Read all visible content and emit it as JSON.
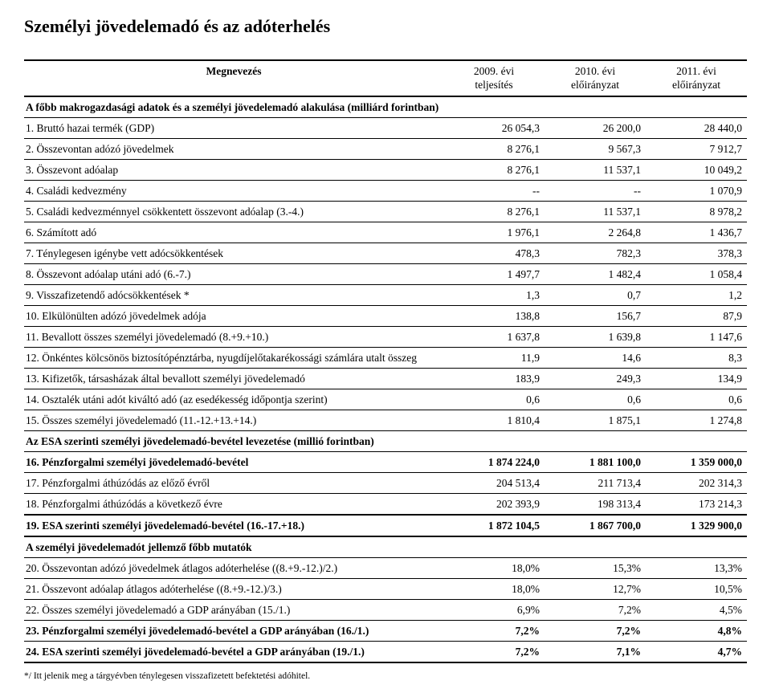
{
  "title": "Személyi jövedelemadó és az adóterhelés",
  "header": {
    "label": "Megnevezés",
    "col1a": "2009. évi",
    "col1b": "teljesítés",
    "col2a": "2010. évi",
    "col2b": "előirányzat",
    "col3a": "2011. évi",
    "col3b": "előirányzat"
  },
  "rows": [
    {
      "cls": "section",
      "label": "A főbb makrogazdasági adatok és a személyi jövedelemadó alakulása (milliárd forintban)",
      "v1": "",
      "v2": "",
      "v3": ""
    },
    {
      "cls": "",
      "label": "1.  Bruttó hazai termék (GDP)",
      "v1": "26 054,3",
      "v2": "26 200,0",
      "v3": "28 440,0"
    },
    {
      "cls": "",
      "label": "2.  Összevontan adózó jövedelmek",
      "v1": "8 276,1",
      "v2": "9 567,3",
      "v3": "7 912,7"
    },
    {
      "cls": "",
      "label": "3.  Összevont adóalap",
      "v1": "8 276,1",
      "v2": "11 537,1",
      "v3": "10 049,2"
    },
    {
      "cls": "",
      "label": "4.  Családi kedvezmény",
      "v1": "--",
      "v2": "--",
      "v3": "1 070,9"
    },
    {
      "cls": "",
      "label": "5.  Családi kedvezménnyel csökkentett összevont adóalap (3.-4.)",
      "v1": "8 276,1",
      "v2": "11 537,1",
      "v3": "8 978,2"
    },
    {
      "cls": "",
      "label": "6.  Számított adó",
      "v1": "1 976,1",
      "v2": "2 264,8",
      "v3": "1 436,7"
    },
    {
      "cls": "",
      "label": "7.  Ténylegesen igénybe vett adócsökkentések",
      "v1": "478,3",
      "v2": "782,3",
      "v3": "378,3"
    },
    {
      "cls": "",
      "label": "8.  Összevont adóalap utáni adó (6.-7.)",
      "v1": "1 497,7",
      "v2": "1 482,4",
      "v3": "1 058,4"
    },
    {
      "cls": "",
      "label": "9.  Visszafizetendő adócsökkentések *",
      "v1": "1,3",
      "v2": "0,7",
      "v3": "1,2"
    },
    {
      "cls": "",
      "label": "10. Elkülönülten adózó jövedelmek adója",
      "v1": "138,8",
      "v2": "156,7",
      "v3": "87,9"
    },
    {
      "cls": "",
      "label": "11. Bevallott összes személyi jövedelemadó (8.+9.+10.)",
      "v1": "1 637,8",
      "v2": "1 639,8",
      "v3": "1 147,6"
    },
    {
      "cls": "",
      "label": "12. Önkéntes kölcsönös biztosítópénztárba, nyugdíjelőtakarékossági számlára utalt összeg",
      "v1": "11,9",
      "v2": "14,6",
      "v3": "8,3"
    },
    {
      "cls": "",
      "label": "13. Kifizetők, társasházak által bevallott személyi jövedelemadó",
      "v1": "183,9",
      "v2": "249,3",
      "v3": "134,9"
    },
    {
      "cls": "",
      "label": "14. Osztalék utáni adót kiváltó adó (az esedékesség időpontja szerint)",
      "v1": "0,6",
      "v2": "0,6",
      "v3": "0,6"
    },
    {
      "cls": "",
      "label": "15. Összes személyi jövedelemadó (11.-12.+13.+14.)",
      "v1": "1 810,4",
      "v2": "1 875,1",
      "v3": "1 274,8"
    },
    {
      "cls": "section",
      "label": "Az ESA szerinti személyi jövedelemadó-bevétel levezetése (millió forintban)",
      "v1": "",
      "v2": "",
      "v3": ""
    },
    {
      "cls": "bold",
      "label": "16. Pénzforgalmi személyi jövedelemadó-bevétel",
      "v1": "1 874 224,0",
      "v2": "1 881 100,0",
      "v3": "1 359 000,0"
    },
    {
      "cls": "",
      "label": "17. Pénzforgalmi áthúzódás az előző évről",
      "v1": "204 513,4",
      "v2": "211 713,4",
      "v3": "202 314,3"
    },
    {
      "cls": "",
      "label": "18. Pénzforgalmi áthúzódás a következő évre",
      "v1": "202 393,9",
      "v2": "198 313,4",
      "v3": "173 214,3"
    },
    {
      "cls": "bold thick-top thick-bottom",
      "label": "19. ESA szerinti személyi jövedelemadó-bevétel (16.-17.+18.)",
      "v1": "1 872 104,5",
      "v2": "1 867 700,0",
      "v3": "1 329 900,0"
    },
    {
      "cls": "section",
      "label": "A személyi jövedelemadót jellemző főbb mutatók",
      "v1": "",
      "v2": "",
      "v3": ""
    },
    {
      "cls": "",
      "label": "20. Összevontan adózó jövedelmek átlagos adóterhelése ((8.+9.-12.)/2.)",
      "v1": "18,0%",
      "v2": "15,3%",
      "v3": "13,3%"
    },
    {
      "cls": "",
      "label": "21. Összevont adóalap átlagos adóterhelése ((8.+9.-12.)/3.)",
      "v1": "18,0%",
      "v2": "12,7%",
      "v3": "10,5%"
    },
    {
      "cls": "",
      "label": "22. Összes személyi jövedelemadó a GDP arányában (15./1.)",
      "v1": "6,9%",
      "v2": "7,2%",
      "v3": "4,5%"
    },
    {
      "cls": "bold",
      "label": "23. Pénzforgalmi személyi jövedelemadó-bevétel a GDP arányában (16./1.)",
      "v1": "7,2%",
      "v2": "7,2%",
      "v3": "4,8%"
    },
    {
      "cls": "bold thick-bottom",
      "label": "24. ESA szerinti személyi jövedelemadó-bevétel a GDP arányában (19./1.)",
      "v1": "7,2%",
      "v2": "7,1%",
      "v3": "4,7%"
    }
  ],
  "footnote": "*/ Itt jelenik meg a tárgyévben ténylegesen visszafizetett befektetési adóhitel."
}
